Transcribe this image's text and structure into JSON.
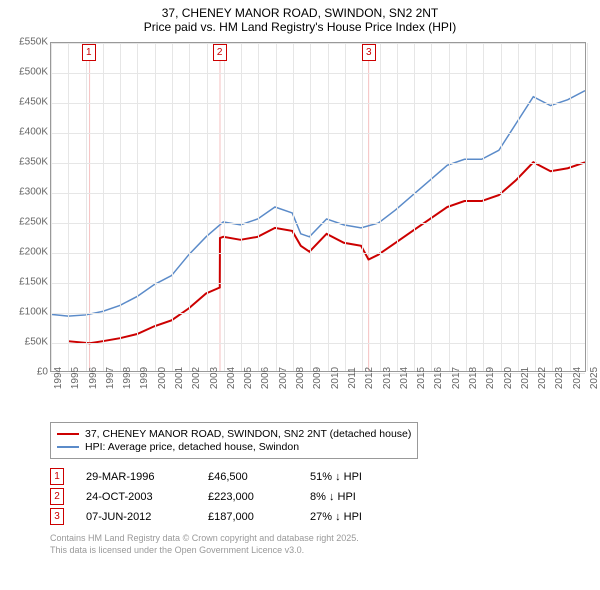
{
  "title_line1": "37, CHENEY MANOR ROAD, SWINDON, SN2 2NT",
  "title_line2": "Price paid vs. HM Land Registry's House Price Index (HPI)",
  "chart": {
    "type": "line",
    "background_color": "#ffffff",
    "grid_color": "#e6e6e6",
    "border_color": "#999999",
    "x_years": [
      1994,
      1995,
      1996,
      1997,
      1998,
      1999,
      2000,
      2001,
      2002,
      2003,
      2004,
      2005,
      2006,
      2007,
      2008,
      2009,
      2010,
      2011,
      2012,
      2013,
      2014,
      2015,
      2016,
      2017,
      2018,
      2019,
      2020,
      2021,
      2022,
      2023,
      2024,
      2025
    ],
    "y_min": 0,
    "y_max": 550000,
    "y_step": 50000,
    "y_labels": [
      "£0",
      "£50K",
      "£100K",
      "£150K",
      "£200K",
      "£250K",
      "£300K",
      "£350K",
      "£400K",
      "£450K",
      "£500K",
      "£550K"
    ],
    "label_fontsize": 10,
    "series": [
      {
        "name": "price_paid",
        "label": "37, CHENEY MANOR ROAD, SWINDON, SN2 2NT (detached house)",
        "color": "#cc0000",
        "line_width": 2,
        "points": [
          [
            1995.0,
            50000
          ],
          [
            1996.24,
            46500
          ],
          [
            1996.25,
            46500
          ],
          [
            1997,
            50000
          ],
          [
            1998,
            55000
          ],
          [
            1999,
            62000
          ],
          [
            2000,
            75000
          ],
          [
            2001,
            85000
          ],
          [
            2002,
            105000
          ],
          [
            2003,
            130000
          ],
          [
            2003.8,
            140000
          ],
          [
            2003.81,
            223000
          ],
          [
            2004,
            225000
          ],
          [
            2005,
            220000
          ],
          [
            2006,
            225000
          ],
          [
            2007,
            240000
          ],
          [
            2008,
            235000
          ],
          [
            2008.5,
            210000
          ],
          [
            2009,
            200000
          ],
          [
            2010,
            230000
          ],
          [
            2011,
            215000
          ],
          [
            2012,
            210000
          ],
          [
            2012.43,
            187000
          ],
          [
            2012.44,
            187000
          ],
          [
            2013,
            195000
          ],
          [
            2014,
            215000
          ],
          [
            2015,
            235000
          ],
          [
            2016,
            255000
          ],
          [
            2017,
            275000
          ],
          [
            2018,
            285000
          ],
          [
            2019,
            285000
          ],
          [
            2020,
            295000
          ],
          [
            2021,
            320000
          ],
          [
            2022,
            350000
          ],
          [
            2023,
            335000
          ],
          [
            2024,
            340000
          ],
          [
            2025,
            350000
          ]
        ]
      },
      {
        "name": "hpi",
        "label": "HPI: Average price, detached house, Swindon",
        "color": "#5b8bc9",
        "line_width": 1.5,
        "points": [
          [
            1994,
            95000
          ],
          [
            1995,
            92000
          ],
          [
            1996,
            94000
          ],
          [
            1997,
            100000
          ],
          [
            1998,
            110000
          ],
          [
            1999,
            125000
          ],
          [
            2000,
            145000
          ],
          [
            2001,
            160000
          ],
          [
            2002,
            195000
          ],
          [
            2003,
            225000
          ],
          [
            2004,
            250000
          ],
          [
            2005,
            245000
          ],
          [
            2006,
            255000
          ],
          [
            2007,
            275000
          ],
          [
            2008,
            265000
          ],
          [
            2008.5,
            230000
          ],
          [
            2009,
            225000
          ],
          [
            2010,
            255000
          ],
          [
            2011,
            245000
          ],
          [
            2012,
            240000
          ],
          [
            2013,
            248000
          ],
          [
            2014,
            270000
          ],
          [
            2015,
            295000
          ],
          [
            2016,
            320000
          ],
          [
            2017,
            345000
          ],
          [
            2018,
            355000
          ],
          [
            2019,
            355000
          ],
          [
            2020,
            370000
          ],
          [
            2021,
            415000
          ],
          [
            2022,
            460000
          ],
          [
            2023,
            445000
          ],
          [
            2024,
            455000
          ],
          [
            2025,
            470000
          ]
        ]
      }
    ],
    "markers": [
      {
        "num": "1",
        "year": 1996.24,
        "color": "#cc0000"
      },
      {
        "num": "2",
        "year": 2003.81,
        "color": "#cc0000"
      },
      {
        "num": "3",
        "year": 2012.44,
        "color": "#cc0000"
      }
    ],
    "marker_lines_color": "#f5c0c0"
  },
  "legend": {
    "rows": [
      {
        "color": "#cc0000",
        "width": 2,
        "label": "37, CHENEY MANOR ROAD, SWINDON, SN2 2NT (detached house)"
      },
      {
        "color": "#5b8bc9",
        "width": 1.5,
        "label": "HPI: Average price, detached house, Swindon"
      }
    ]
  },
  "sales": [
    {
      "num": "1",
      "color": "#cc0000",
      "date": "29-MAR-1996",
      "price": "£46,500",
      "diff": "51% ↓ HPI"
    },
    {
      "num": "2",
      "color": "#cc0000",
      "date": "24-OCT-2003",
      "price": "£223,000",
      "diff": "8% ↓ HPI"
    },
    {
      "num": "3",
      "color": "#cc0000",
      "date": "07-JUN-2012",
      "price": "£187,000",
      "diff": "27% ↓ HPI"
    }
  ],
  "footer_line1": "Contains HM Land Registry data © Crown copyright and database right 2025.",
  "footer_line2": "This data is licensed under the Open Government Licence v3.0."
}
